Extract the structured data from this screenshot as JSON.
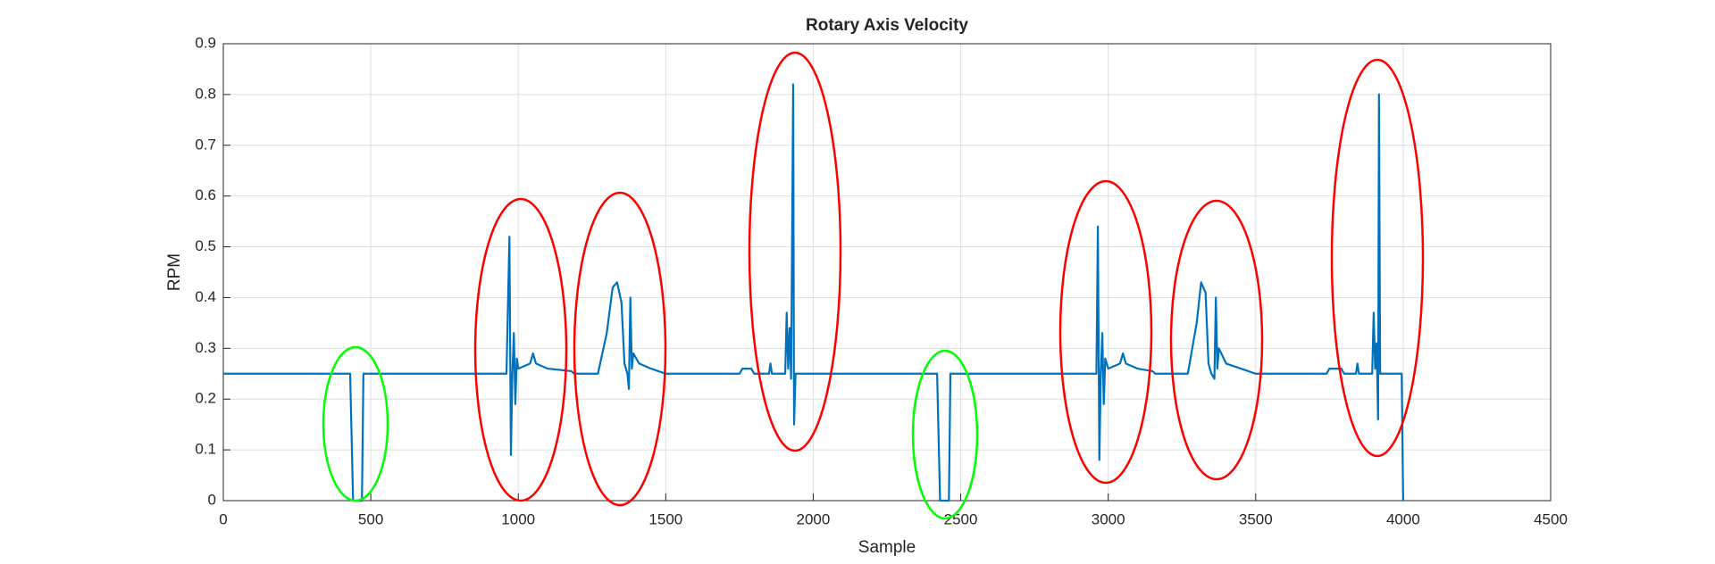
{
  "chart_data": {
    "type": "line",
    "title": "Rotary Axis Velocity",
    "xlabel": "Sample",
    "ylabel": "RPM",
    "xlim": [
      0,
      4500
    ],
    "xticks": [
      0,
      500,
      1000,
      1500,
      2000,
      2500,
      3000,
      3500,
      4000,
      4500
    ],
    "ylim": [
      0,
      0.9
    ],
    "yticks": [
      0,
      0.1,
      0.2,
      0.3,
      0.4,
      0.5,
      0.6,
      0.7,
      0.8,
      0.9
    ],
    "grid": true,
    "series": [
      {
        "color": "#0072bd",
        "x": [
          0,
          430,
          440,
          470,
          475,
          960,
          970,
          975,
          980,
          985,
          990,
          995,
          1000,
          1040,
          1050,
          1060,
          1100,
          1180,
          1190,
          1270,
          1300,
          1320,
          1335,
          1350,
          1360,
          1370,
          1375,
          1380,
          1385,
          1390,
          1410,
          1450,
          1500,
          1750,
          1760,
          1790,
          1800,
          1850,
          1855,
          1860,
          1905,
          1910,
          1915,
          1920,
          1925,
          1932,
          1935,
          1940,
          2420,
          2430,
          2460,
          2465,
          2960,
          2965,
          2970,
          2975,
          2980,
          2985,
          2990,
          3000,
          3040,
          3050,
          3060,
          3100,
          3150,
          3160,
          3270,
          3300,
          3315,
          3330,
          3340,
          3350,
          3360,
          3365,
          3370,
          3375,
          3400,
          3450,
          3500,
          3740,
          3750,
          3790,
          3800,
          3840,
          3845,
          3850,
          3895,
          3900,
          3905,
          3910,
          3915,
          3918,
          3922,
          3995,
          4000
        ],
        "values": [
          0.25,
          0.25,
          0,
          0,
          0.25,
          0.25,
          0.52,
          0.09,
          0.25,
          0.33,
          0.19,
          0.28,
          0.26,
          0.27,
          0.29,
          0.27,
          0.26,
          0.255,
          0.25,
          0.25,
          0.33,
          0.42,
          0.43,
          0.39,
          0.27,
          0.25,
          0.22,
          0.4,
          0.26,
          0.29,
          0.27,
          0.26,
          0.25,
          0.25,
          0.26,
          0.26,
          0.25,
          0.25,
          0.27,
          0.25,
          0.25,
          0.37,
          0.26,
          0.34,
          0.24,
          0.82,
          0.15,
          0.25,
          0.25,
          0,
          0,
          0.25,
          0.25,
          0.54,
          0.08,
          0.25,
          0.33,
          0.19,
          0.28,
          0.26,
          0.27,
          0.29,
          0.27,
          0.26,
          0.255,
          0.25,
          0.25,
          0.35,
          0.43,
          0.41,
          0.27,
          0.25,
          0.24,
          0.4,
          0.26,
          0.3,
          0.27,
          0.26,
          0.25,
          0.25,
          0.26,
          0.26,
          0.25,
          0.25,
          0.27,
          0.25,
          0.25,
          0.37,
          0.26,
          0.31,
          0.16,
          0.8,
          0.25,
          0.25,
          0
        ]
      }
    ]
  }
}
